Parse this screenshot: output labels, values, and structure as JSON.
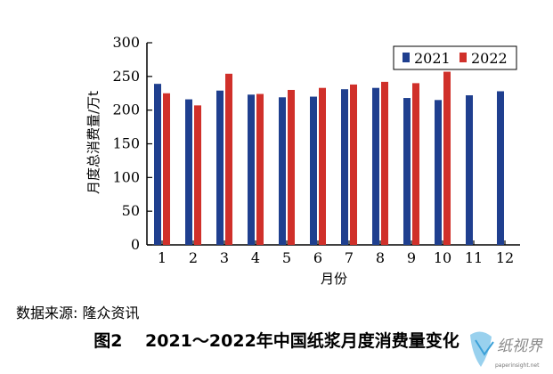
{
  "chart_data": {
    "type": "bar",
    "categories": [
      "1",
      "2",
      "3",
      "4",
      "5",
      "6",
      "7",
      "8",
      "9",
      "10",
      "11",
      "12"
    ],
    "series": [
      {
        "name": "2021",
        "color": "#1f3f8f",
        "values": [
          239,
          216,
          229,
          223,
          219,
          220,
          231,
          233,
          218,
          215,
          222,
          228
        ]
      },
      {
        "name": "2022",
        "color": "#d0302a",
        "values": [
          225,
          207,
          254,
          224,
          230,
          233,
          238,
          242,
          240,
          257,
          null,
          null
        ]
      }
    ],
    "ylim": [
      0,
      300
    ],
    "yticks": [
      "0",
      "50",
      "100",
      "150",
      "200",
      "250",
      "300"
    ],
    "xlabel": "月份",
    "ylabel": "月度总消费量/万t",
    "legend_position": "top-right",
    "grid": false
  },
  "source_note": "数据来源: 隆众资讯",
  "caption": "图2　 2021～2022年中国纸浆月度消费量变化",
  "watermark": {
    "text": "纸视界",
    "subtext": "paperinsight.net",
    "icon": "paperinsight-logo-icon"
  }
}
